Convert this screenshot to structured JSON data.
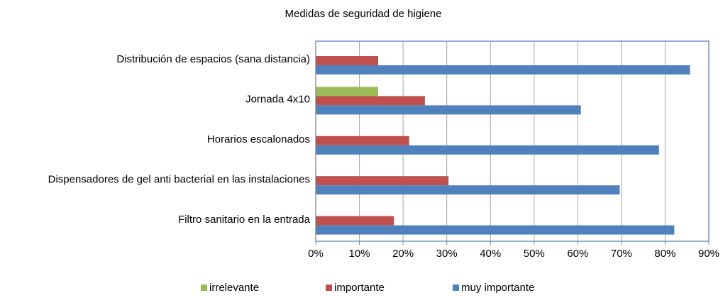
{
  "chart_data": {
    "type": "bar",
    "orientation": "horizontal",
    "title": "Medidas de seguridad de higiene",
    "categories": [
      "Distribución de espacios (sana distancia)",
      "Jornada 4x10",
      "Horarios escalonados",
      "Dispensadores de gel anti bacterial en las instalaciones",
      "Filtro sanitario en la entrada"
    ],
    "series": [
      {
        "name": "irrelevante",
        "color": "#9bbb59",
        "values": [
          0,
          14.3,
          0,
          0,
          0
        ]
      },
      {
        "name": "importante",
        "color": "#c0504d",
        "values": [
          14.3,
          25,
          21.4,
          30.4,
          17.9
        ]
      },
      {
        "name": "muy importante",
        "color": "#4f81bd",
        "values": [
          85.7,
          60.7,
          78.6,
          69.6,
          82.1
        ]
      }
    ],
    "xlim": [
      0,
      90
    ],
    "xticks": [
      {
        "value": 0,
        "label": "0%"
      },
      {
        "value": 10,
        "label": "10%"
      },
      {
        "value": 20,
        "label": "20%"
      },
      {
        "value": 30,
        "label": "30%"
      },
      {
        "value": 40,
        "label": "40%"
      },
      {
        "value": 50,
        "label": "50%"
      },
      {
        "value": 60,
        "label": "60%"
      },
      {
        "value": 70,
        "label": "70%"
      },
      {
        "value": 80,
        "label": "80%"
      },
      {
        "value": 90,
        "label": "90%"
      }
    ],
    "grid": true,
    "legend": "bottom"
  }
}
